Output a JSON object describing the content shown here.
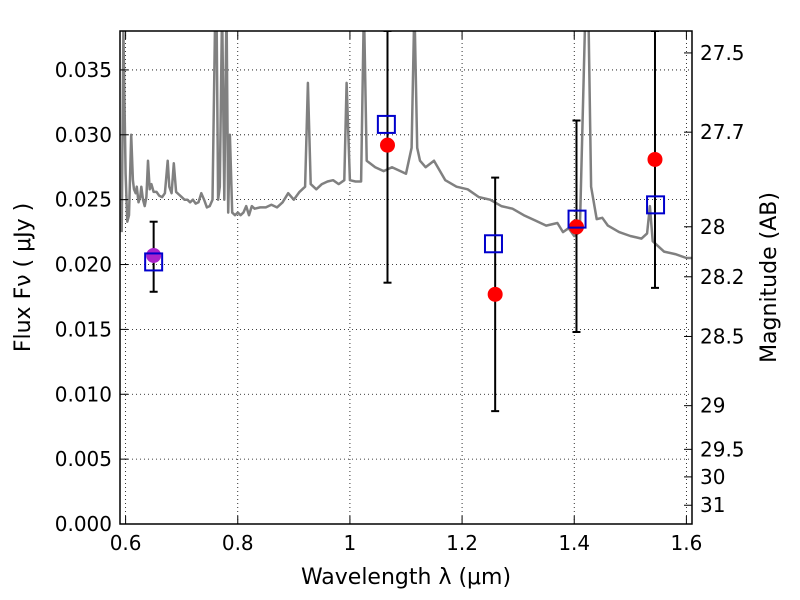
{
  "chart_data": {
    "type": "scatter",
    "xlabel": "Wavelength  λ (μm)",
    "ylabel": "Flux  Fν  ( μJy )",
    "ylabel_right": "Magnitude (AB)",
    "xlim": [
      0.59,
      1.61
    ],
    "ylim": [
      0.0,
      0.038
    ],
    "grid": true,
    "x_ticks": [
      0.6,
      0.8,
      1.0,
      1.2,
      1.4,
      1.6
    ],
    "x_tick_labels": [
      "0.6",
      "0.8",
      "1",
      "1.2",
      "1.4",
      "1.6"
    ],
    "y_ticks": [
      0.0,
      0.005,
      0.01,
      0.015,
      0.02,
      0.025,
      0.03,
      0.035
    ],
    "y_tick_labels": [
      "0.000",
      "0.005",
      "0.010",
      "0.015",
      "0.020",
      "0.025",
      "0.030",
      "0.035"
    ],
    "mag_ticks": [
      27.5,
      27.7,
      28.0,
      28.2,
      28.5,
      29.0,
      29.5,
      30.0,
      31.0
    ],
    "mag_tick_labels": [
      "27.5",
      "27.7",
      "28",
      "28.2",
      "28.5",
      "29",
      "29.5",
      "30",
      "31"
    ],
    "colors": {
      "spectrum": "#808080",
      "model_points": "#0000cc",
      "observed_points": "#ff0000",
      "errorbars": "#000000",
      "overlap_point": "#aa22cc"
    },
    "series": [
      {
        "name": "model spectrum",
        "kind": "line",
        "x": [
          0.593,
          0.596,
          0.6,
          0.603,
          0.606,
          0.61,
          0.613,
          0.615,
          0.618,
          0.62,
          0.623,
          0.626,
          0.628,
          0.631,
          0.634,
          0.637,
          0.64,
          0.643,
          0.646,
          0.65,
          0.655,
          0.66,
          0.665,
          0.67,
          0.675,
          0.678,
          0.682,
          0.686,
          0.69,
          0.695,
          0.7,
          0.705,
          0.71,
          0.715,
          0.72,
          0.725,
          0.73,
          0.735,
          0.74,
          0.745,
          0.75,
          0.755,
          0.76,
          0.762,
          0.765,
          0.768,
          0.772,
          0.776,
          0.78,
          0.783,
          0.786,
          0.79,
          0.795,
          0.8,
          0.805,
          0.81,
          0.815,
          0.82,
          0.825,
          0.83,
          0.84,
          0.85,
          0.86,
          0.87,
          0.88,
          0.89,
          0.9,
          0.91,
          0.92,
          0.925,
          0.93,
          0.94,
          0.95,
          0.96,
          0.97,
          0.98,
          0.99,
          0.994,
          1.0,
          1.01,
          1.02,
          1.025,
          1.03,
          1.045,
          1.06,
          1.075,
          1.09,
          1.1,
          1.11,
          1.115,
          1.12,
          1.125,
          1.135,
          1.15,
          1.17,
          1.19,
          1.21,
          1.23,
          1.25,
          1.27,
          1.29,
          1.31,
          1.33,
          1.35,
          1.37,
          1.38,
          1.39,
          1.4,
          1.41,
          1.42,
          1.425,
          1.43,
          1.44,
          1.45,
          1.46,
          1.48,
          1.5,
          1.52,
          1.53,
          1.535,
          1.54,
          1.56,
          1.58,
          1.6,
          1.61
        ],
        "y": [
          0.0225,
          0.038,
          0.027,
          0.0233,
          0.0238,
          0.03,
          0.0265,
          0.0258,
          0.0255,
          0.026,
          0.0248,
          0.0252,
          0.026,
          0.025,
          0.0245,
          0.0252,
          0.028,
          0.0258,
          0.0262,
          0.0256,
          0.0256,
          0.0253,
          0.0252,
          0.0255,
          0.028,
          0.026,
          0.0255,
          0.0278,
          0.0256,
          0.0254,
          0.0252,
          0.025,
          0.025,
          0.0248,
          0.025,
          0.0247,
          0.0248,
          0.0255,
          0.025,
          0.0244,
          0.0245,
          0.025,
          0.04,
          0.04,
          0.025,
          0.026,
          0.04,
          0.025,
          0.04,
          0.024,
          0.03,
          0.024,
          0.0238,
          0.024,
          0.0238,
          0.024,
          0.0245,
          0.0238,
          0.0245,
          0.0243,
          0.0244,
          0.0244,
          0.0246,
          0.0244,
          0.0248,
          0.0255,
          0.025,
          0.0256,
          0.026,
          0.034,
          0.0262,
          0.0258,
          0.0262,
          0.0264,
          0.0265,
          0.0262,
          0.0265,
          0.034,
          0.0265,
          0.0264,
          0.0264,
          0.04,
          0.028,
          0.0275,
          0.0272,
          0.0275,
          0.0272,
          0.027,
          0.029,
          0.04,
          0.029,
          0.028,
          0.0275,
          0.028,
          0.0265,
          0.026,
          0.0258,
          0.0252,
          0.025,
          0.0245,
          0.0243,
          0.0238,
          0.0234,
          0.023,
          0.0232,
          0.0225,
          0.0228,
          0.0222,
          0.0225,
          0.04,
          0.04,
          0.026,
          0.0235,
          0.0236,
          0.023,
          0.0225,
          0.0222,
          0.022,
          0.0224,
          0.0245,
          0.0218,
          0.021,
          0.0208,
          0.0205,
          0.0205
        ]
      },
      {
        "name": "model photometry",
        "kind": "open_square",
        "x": [
          0.65,
          1.065,
          1.256,
          1.405,
          1.545
        ],
        "y": [
          0.0202,
          0.0308,
          0.0216,
          0.0235,
          0.0246
        ]
      },
      {
        "name": "observed photometry",
        "kind": "filled_circle",
        "x": [
          0.65,
          1.067,
          1.259,
          1.404,
          1.544
        ],
        "y": [
          0.0207,
          0.0292,
          0.0177,
          0.0229,
          0.0281
        ],
        "yerr_low": [
          0.0179,
          0.0186,
          0.0087,
          0.0148,
          0.0182
        ],
        "yerr_high": [
          0.0233,
          0.038,
          0.0267,
          0.0311,
          0.038
        ]
      }
    ]
  }
}
